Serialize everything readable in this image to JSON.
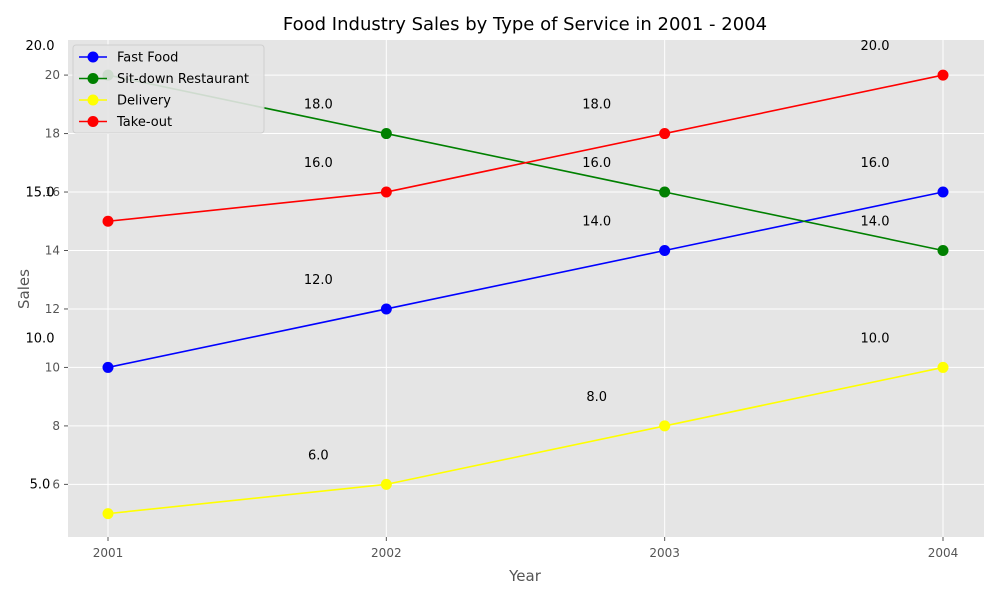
{
  "chart_data": {
    "type": "line",
    "title": "Food Industry Sales by Type of Service in 2001 - 2004",
    "xlabel": "Year",
    "ylabel": "Sales",
    "categories": [
      "2001",
      "2002",
      "2003",
      "2004"
    ],
    "yticks": [
      6,
      8,
      10,
      12,
      14,
      16,
      18,
      20
    ],
    "ylim": [
      4.2,
      21.2
    ],
    "grid": true,
    "legend_position": "top-left",
    "series": [
      {
        "name": "Fast Food",
        "color": "#0000ff",
        "values": [
          10,
          12,
          14,
          16
        ]
      },
      {
        "name": "Sit-down Restaurant",
        "color": "#008000",
        "values": [
          20,
          18,
          16,
          14
        ]
      },
      {
        "name": "Delivery",
        "color": "#ffff00",
        "values": [
          5,
          6,
          8,
          10
        ]
      },
      {
        "name": "Take-out",
        "color": "#ff0000",
        "values": [
          15,
          16,
          18,
          20
        ]
      }
    ],
    "annotations": [
      {
        "text": "10.0",
        "x": "2001",
        "y": 10.0
      },
      {
        "text": "12.0",
        "x": "2002",
        "y": 12.0
      },
      {
        "text": "14.0",
        "x": "2003",
        "y": 14.0
      },
      {
        "text": "16.0",
        "x": "2004",
        "y": 16.0
      },
      {
        "text": "20.0",
        "x": "2001",
        "y": 20.0
      },
      {
        "text": "18.0",
        "x": "2002",
        "y": 18.0
      },
      {
        "text": "16.0",
        "x": "2003",
        "y": 16.0
      },
      {
        "text": "14.0",
        "x": "2004",
        "y": 14.0
      },
      {
        "text": "5.0",
        "x": "2001",
        "y": 5.0
      },
      {
        "text": "6.0",
        "x": "2002",
        "y": 6.0
      },
      {
        "text": "8.0",
        "x": "2003",
        "y": 8.0
      },
      {
        "text": "10.0",
        "x": "2004",
        "y": 10.0
      },
      {
        "text": "15.0",
        "x": "2001",
        "y": 15.0
      },
      {
        "text": "16.0",
        "x": "2002",
        "y": 16.0
      },
      {
        "text": "18.0",
        "x": "2003",
        "y": 18.0
      },
      {
        "text": "20.0",
        "x": "2004",
        "y": 20.0
      }
    ]
  }
}
